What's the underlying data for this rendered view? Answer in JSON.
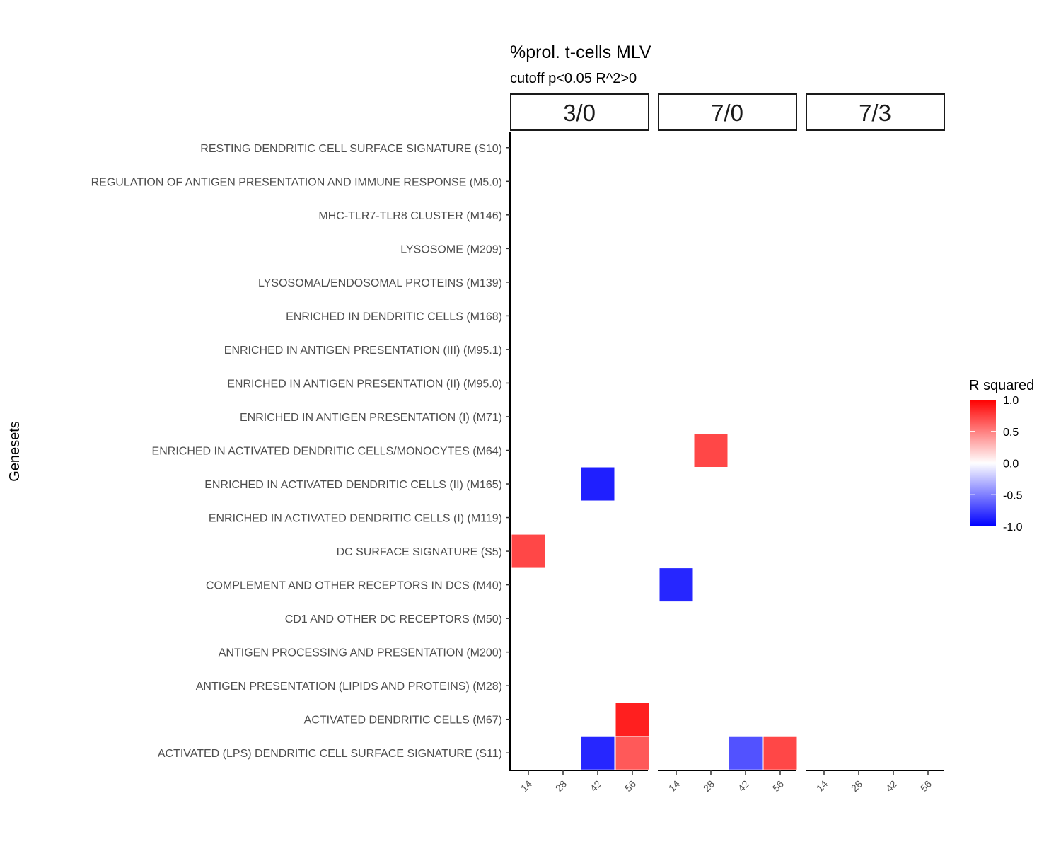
{
  "chart_data": {
    "type": "heatmap",
    "title": "%prol. t-cells MLV",
    "subtitle": "cutoff p<0.05 R^2>0",
    "ylabel": "Genesets",
    "xlabel": "",
    "facets": [
      "3/0",
      "7/0",
      "7/3"
    ],
    "x": [
      "14",
      "28",
      "42",
      "56"
    ],
    "y": [
      "RESTING DENDRITIC CELL SURFACE SIGNATURE (S10)",
      "REGULATION OF ANTIGEN PRESENTATION AND IMMUNE RESPONSE (M5.0)",
      "MHC-TLR7-TLR8 CLUSTER (M146)",
      "LYSOSOME (M209)",
      "LYSOSOMAL/ENDOSOMAL PROTEINS (M139)",
      "ENRICHED IN DENDRITIC CELLS (M168)",
      "ENRICHED IN ANTIGEN PRESENTATION (III) (M95.1)",
      "ENRICHED IN ANTIGEN PRESENTATION (II) (M95.0)",
      "ENRICHED IN ANTIGEN PRESENTATION (I) (M71)",
      "ENRICHED IN ACTIVATED DENDRITIC CELLS/MONOCYTES (M64)",
      "ENRICHED IN ACTIVATED DENDRITIC CELLS (II) (M165)",
      "ENRICHED IN ACTIVATED DENDRITIC CELLS (I) (M119)",
      "DC SURFACE SIGNATURE (S5)",
      "COMPLEMENT AND OTHER RECEPTORS IN DCS (M40)",
      "CD1 AND OTHER DC RECEPTORS (M50)",
      "ANTIGEN PROCESSING AND PRESENTATION (M200)",
      "ANTIGEN PRESENTATION (LIPIDS AND PROTEINS) (M28)",
      "ACTIVATED DENDRITIC CELLS (M67)",
      "ACTIVATED (LPS) DENDRITIC CELL SURFACE SIGNATURE (S11)"
    ],
    "cells": [
      {
        "facet": "7/0",
        "x": "28",
        "y": "ENRICHED IN ACTIVATED DENDRITIC CELLS/MONOCYTES (M64)",
        "value": 0.72
      },
      {
        "facet": "3/0",
        "x": "42",
        "y": "ENRICHED IN ACTIVATED DENDRITIC CELLS (II) (M165)",
        "value": -0.88
      },
      {
        "facet": "3/0",
        "x": "14",
        "y": "DC SURFACE SIGNATURE (S5)",
        "value": 0.72
      },
      {
        "facet": "7/0",
        "x": "14",
        "y": "COMPLEMENT AND OTHER RECEPTORS IN DCS (M40)",
        "value": -0.85
      },
      {
        "facet": "3/0",
        "x": "56",
        "y": "ACTIVATED DENDRITIC CELLS (M67)",
        "value": 0.88
      },
      {
        "facet": "3/0",
        "x": "42",
        "y": "ACTIVATED (LPS) DENDRITIC CELL SURFACE SIGNATURE (S11)",
        "value": -0.85
      },
      {
        "facet": "3/0",
        "x": "56",
        "y": "ACTIVATED (LPS) DENDRITIC CELL SURFACE SIGNATURE (S11)",
        "value": 0.65
      },
      {
        "facet": "7/0",
        "x": "42",
        "y": "ACTIVATED (LPS) DENDRITIC CELL SURFACE SIGNATURE (S11)",
        "value": -0.68
      },
      {
        "facet": "7/0",
        "x": "56",
        "y": "ACTIVATED (LPS) DENDRITIC CELL SURFACE SIGNATURE (S11)",
        "value": 0.72
      }
    ],
    "legend": {
      "title": "R squared",
      "placement": "right",
      "ticks": [
        "1.0",
        "0.5",
        "0.0",
        "-0.5",
        "-1.0"
      ],
      "tick_values": [
        1.0,
        0.5,
        0.0,
        -0.5,
        -1.0
      ],
      "low_color": "#0000ff",
      "mid_color": "#ffffff",
      "high_color": "#ff0000",
      "range": [
        -1,
        1
      ]
    },
    "grid": false
  }
}
